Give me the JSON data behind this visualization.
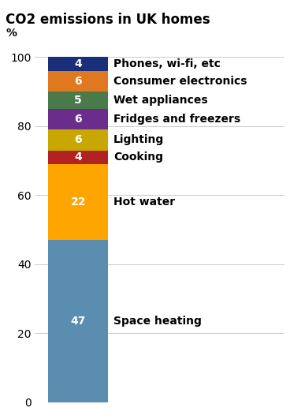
{
  "title": "CO2 emissions in UK homes",
  "ylabel": "%",
  "categories": [
    "Space heating",
    "Hot water",
    "Cooking",
    "Lighting",
    "Fridges and freezers",
    "Wet appliances",
    "Consumer electronics",
    "Phones, wi-fi, etc"
  ],
  "values": [
    47,
    22,
    4,
    6,
    6,
    5,
    6,
    4
  ],
  "colors": [
    "#5b8db0",
    "#ffa500",
    "#b22222",
    "#c8a800",
    "#6b2d8b",
    "#4a7a4a",
    "#e07820",
    "#1a2f7a"
  ],
  "label_color": "white",
  "label_fontsize": 10,
  "annotation_fontsize": 10,
  "ylim": [
    0,
    102
  ],
  "title_fontsize": 12,
  "background_color": "#ffffff"
}
